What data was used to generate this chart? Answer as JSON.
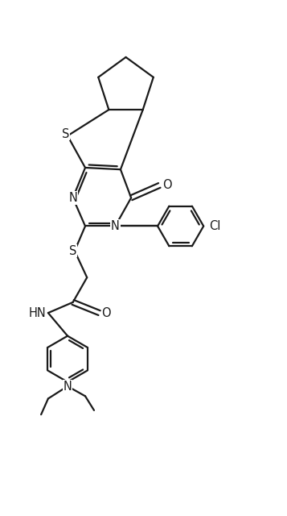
{
  "bg_color": "#ffffff",
  "line_color": "#1a1a1a",
  "line_width": 1.6,
  "font_size": 10.5,
  "figsize": [
    3.57,
    6.4
  ],
  "dpi": 100,
  "xlim": [
    0,
    8
  ],
  "ylim": [
    0,
    14
  ]
}
